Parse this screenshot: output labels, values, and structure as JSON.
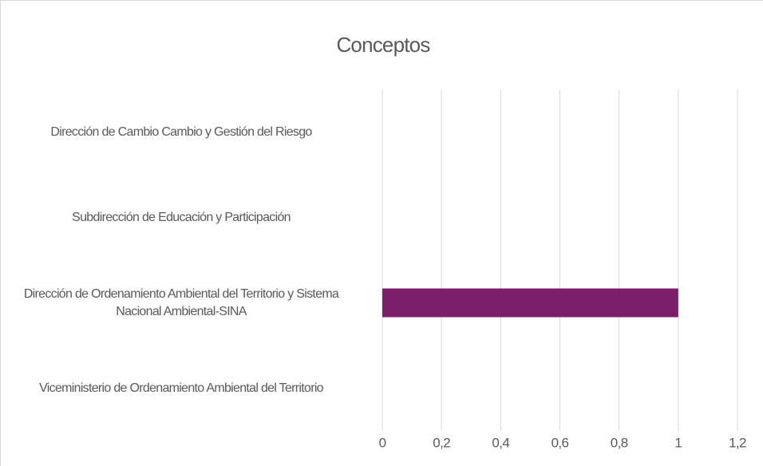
{
  "chart_data": {
    "type": "barh",
    "title": "Conceptos",
    "categories": [
      "Dirección de Cambio Cambio y Gestión del Riesgo",
      "Subdirección de Educación y Participación",
      "Dirección de Ordenamiento Ambiental del Territorio y Sistema Nacional Ambiental-SINA",
      "Viceministerio de Ordenamiento Ambiental del Territorio"
    ],
    "values": [
      0,
      0,
      1,
      0
    ],
    "color": "#7b1f6b",
    "xlim": [
      0,
      1.2
    ],
    "xticks": [
      0,
      {
        "value": 0.2,
        "label": "0,2"
      },
      {
        "value": 0.4,
        "label": "0,4"
      },
      {
        "value": 0.6,
        "label": "0,6"
      },
      {
        "value": 0.8,
        "label": "0,8"
      },
      1,
      {
        "value": 1.2,
        "label": "1,2"
      }
    ],
    "grid": true
  }
}
